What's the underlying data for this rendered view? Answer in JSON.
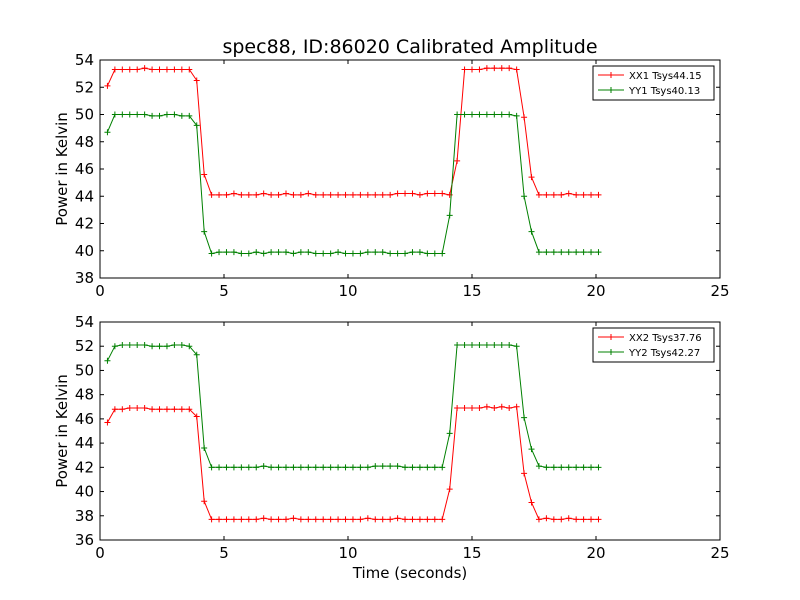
{
  "chart_data": [
    {
      "type": "line",
      "title": "spec88, ID:86020 Calibrated Amplitude",
      "xlabel": "",
      "ylabel": "Power in Kelvin",
      "xlim": [
        0,
        25
      ],
      "ylim": [
        38,
        54
      ],
      "xticks": [
        "0",
        "5",
        "10",
        "15",
        "20",
        "25"
      ],
      "yticks": [
        "38",
        "40",
        "42",
        "44",
        "46",
        "48",
        "50",
        "52",
        "54"
      ],
      "grid": false,
      "legend_position": "top-right",
      "x": [
        0.3,
        0.6,
        0.9,
        1.2,
        1.5,
        1.8,
        2.1,
        2.4,
        2.7,
        3.0,
        3.3,
        3.6,
        3.9,
        4.2,
        4.5,
        4.8,
        5.1,
        5.4,
        5.7,
        6.0,
        6.3,
        6.6,
        6.9,
        7.2,
        7.5,
        7.8,
        8.1,
        8.4,
        8.7,
        9.0,
        9.3,
        9.6,
        9.9,
        10.2,
        10.5,
        10.8,
        11.1,
        11.4,
        11.7,
        12.0,
        12.3,
        12.6,
        12.9,
        13.2,
        13.5,
        13.8,
        14.1,
        14.4,
        14.7,
        15.0,
        15.3,
        15.6,
        15.9,
        16.2,
        16.5,
        16.8,
        17.1,
        17.4,
        17.7,
        18.0,
        18.3,
        18.6,
        18.9,
        19.2,
        19.5,
        19.8,
        20.1
      ],
      "series": [
        {
          "name": "XX1 Tsys44.15",
          "color": "#ff0000",
          "values": [
            52.1,
            53.3,
            53.3,
            53.3,
            53.3,
            53.4,
            53.3,
            53.3,
            53.3,
            53.3,
            53.3,
            53.3,
            52.5,
            45.6,
            44.1,
            44.1,
            44.1,
            44.2,
            44.1,
            44.1,
            44.1,
            44.2,
            44.1,
            44.1,
            44.2,
            44.1,
            44.1,
            44.2,
            44.1,
            44.1,
            44.1,
            44.1,
            44.1,
            44.1,
            44.1,
            44.1,
            44.1,
            44.1,
            44.1,
            44.2,
            44.2,
            44.2,
            44.1,
            44.2,
            44.2,
            44.2,
            44.1,
            46.6,
            53.3,
            53.3,
            53.3,
            53.4,
            53.4,
            53.4,
            53.4,
            53.3,
            49.8,
            45.4,
            44.1,
            44.1,
            44.1,
            44.1,
            44.2,
            44.1,
            44.1,
            44.1,
            44.1
          ]
        },
        {
          "name": "YY1 Tsys40.13",
          "color": "#008000",
          "values": [
            48.7,
            50.0,
            50.0,
            50.0,
            50.0,
            50.0,
            49.9,
            49.9,
            50.0,
            50.0,
            49.9,
            49.9,
            49.2,
            41.4,
            39.8,
            39.9,
            39.9,
            39.9,
            39.8,
            39.8,
            39.9,
            39.8,
            39.9,
            39.9,
            39.9,
            39.8,
            39.9,
            39.9,
            39.8,
            39.8,
            39.8,
            39.9,
            39.8,
            39.8,
            39.8,
            39.9,
            39.9,
            39.9,
            39.8,
            39.8,
            39.8,
            39.9,
            39.9,
            39.8,
            39.8,
            39.8,
            42.6,
            50.0,
            50.0,
            50.0,
            50.0,
            50.0,
            50.0,
            50.0,
            50.0,
            49.9,
            44.0,
            41.4,
            39.9,
            39.9,
            39.9,
            39.9,
            39.9,
            39.9,
            39.9,
            39.9,
            39.9
          ]
        }
      ]
    },
    {
      "type": "line",
      "title": "",
      "xlabel": "Time (seconds)",
      "ylabel": "Power in Kelvin",
      "xlim": [
        0,
        25
      ],
      "ylim": [
        36,
        54
      ],
      "xticks": [
        "0",
        "5",
        "10",
        "15",
        "20",
        "25"
      ],
      "yticks": [
        "36",
        "38",
        "40",
        "42",
        "44",
        "46",
        "48",
        "50",
        "52",
        "54"
      ],
      "grid": false,
      "legend_position": "top-right",
      "x": [
        0.3,
        0.6,
        0.9,
        1.2,
        1.5,
        1.8,
        2.1,
        2.4,
        2.7,
        3.0,
        3.3,
        3.6,
        3.9,
        4.2,
        4.5,
        4.8,
        5.1,
        5.4,
        5.7,
        6.0,
        6.3,
        6.6,
        6.9,
        7.2,
        7.5,
        7.8,
        8.1,
        8.4,
        8.7,
        9.0,
        9.3,
        9.6,
        9.9,
        10.2,
        10.5,
        10.8,
        11.1,
        11.4,
        11.7,
        12.0,
        12.3,
        12.6,
        12.9,
        13.2,
        13.5,
        13.8,
        14.1,
        14.4,
        14.7,
        15.0,
        15.3,
        15.6,
        15.9,
        16.2,
        16.5,
        16.8,
        17.1,
        17.4,
        17.7,
        18.0,
        18.3,
        18.6,
        18.9,
        19.2,
        19.5,
        19.8,
        20.1
      ],
      "series": [
        {
          "name": "XX2 Tsys37.76",
          "color": "#ff0000",
          "values": [
            45.7,
            46.8,
            46.8,
            46.9,
            46.9,
            46.9,
            46.8,
            46.8,
            46.8,
            46.8,
            46.8,
            46.8,
            46.2,
            39.2,
            37.7,
            37.7,
            37.7,
            37.7,
            37.7,
            37.7,
            37.7,
            37.8,
            37.7,
            37.7,
            37.7,
            37.8,
            37.7,
            37.7,
            37.7,
            37.7,
            37.7,
            37.7,
            37.7,
            37.7,
            37.7,
            37.8,
            37.7,
            37.7,
            37.7,
            37.8,
            37.7,
            37.7,
            37.7,
            37.7,
            37.7,
            37.7,
            40.2,
            46.9,
            46.9,
            46.9,
            46.9,
            47.0,
            46.9,
            47.0,
            46.9,
            47.0,
            41.5,
            39.1,
            37.7,
            37.8,
            37.7,
            37.7,
            37.8,
            37.7,
            37.7,
            37.7,
            37.7
          ]
        },
        {
          "name": "YY2 Tsys42.27",
          "color": "#008000",
          "values": [
            50.8,
            52.0,
            52.1,
            52.1,
            52.1,
            52.1,
            52.0,
            52.0,
            52.0,
            52.1,
            52.1,
            52.0,
            51.3,
            43.6,
            42.0,
            42.0,
            42.0,
            42.0,
            42.0,
            42.0,
            42.0,
            42.1,
            42.0,
            42.0,
            42.0,
            42.0,
            42.0,
            42.0,
            42.0,
            42.0,
            42.0,
            42.0,
            42.0,
            42.0,
            42.0,
            42.0,
            42.1,
            42.1,
            42.1,
            42.1,
            42.0,
            42.0,
            42.0,
            42.0,
            42.0,
            42.0,
            44.8,
            52.1,
            52.1,
            52.1,
            52.1,
            52.1,
            52.1,
            52.1,
            52.1,
            52.0,
            46.1,
            43.5,
            42.1,
            42.0,
            42.0,
            42.0,
            42.0,
            42.0,
            42.0,
            42.0,
            42.0
          ]
        }
      ]
    }
  ]
}
